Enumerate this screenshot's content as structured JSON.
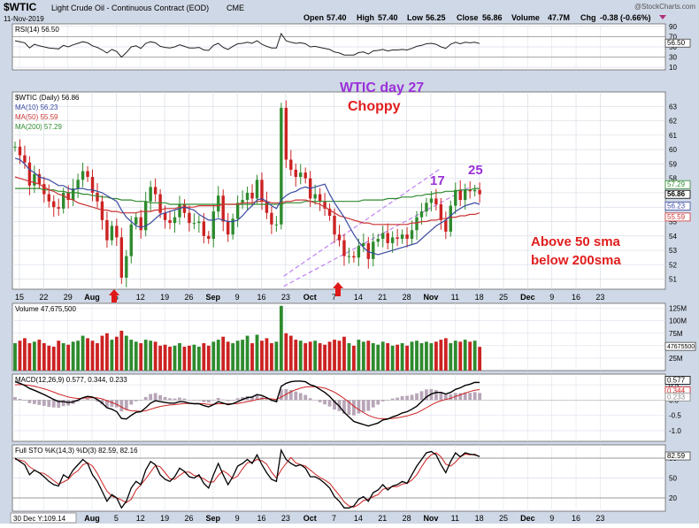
{
  "header": {
    "symbol": "$WTIC",
    "name": "Light Crude Oil - Continuous Contract (EOD)",
    "exchange": "CME",
    "date": "11-Nov-2019",
    "watermark": "@StockCharts.com",
    "open_label": "Open",
    "open": "57.40",
    "high_label": "High",
    "high": "57.40",
    "low_label": "Low",
    "low": "56.25",
    "close_label": "Close",
    "close": "56.86",
    "volume_label": "Volume",
    "volume": "47.7M",
    "chg_label": "Chg",
    "chg": "-0.38 (-0.66%)"
  },
  "footer": {
    "crosshair": "30 Dec Y:109.14"
  },
  "colors": {
    "up": "#2e8b2e",
    "down": "#cc2222",
    "ma10": "#3a4aa0",
    "ma50": "#cc3333",
    "ma200": "#2e8b2e",
    "channel": "#c080f0",
    "annotation_purple": "#9b30d9",
    "annotation_red": "#e11d1d",
    "arrow": "#e01818",
    "panel_bg": "#ffffff",
    "chart_bg": "#cfd8e6"
  },
  "annotations": {
    "title1": "WTIC day 27",
    "title2": "Choppy",
    "count1": "17",
    "count2": "25",
    "note1": "Above 50 sma",
    "note2": "below 200sma"
  },
  "chart_data": [
    {
      "panel": "price",
      "type": "candlestick",
      "legend": [
        "$WTIC (Daily) 56.86",
        "MA(10) 56.23",
        "MA(50) 55.59",
        "MA(200) 57.29"
      ],
      "y_ticks": [
        51,
        52,
        53,
        54,
        55,
        56,
        57,
        58,
        59,
        60,
        61,
        62,
        63
      ],
      "ylim": [
        50.3,
        64.0
      ],
      "x_tick_labels": [
        "15",
        "22",
        "29",
        "Aug",
        "5",
        "12",
        "19",
        "26",
        "Sep",
        "9",
        "16",
        "23",
        "Oct",
        "7",
        "14",
        "21",
        "28",
        "Nov",
        "11",
        "18",
        "25",
        "Dec",
        "9",
        "16",
        "23"
      ],
      "right_labels": [
        "57.29",
        "56.86",
        "56.23",
        "55.59"
      ],
      "closes": [
        60.2,
        59.6,
        59.1,
        57.5,
        58.3,
        57.6,
        56.9,
        56.4,
        56.0,
        55.9,
        57.0,
        56.5,
        57.3,
        57.9,
        58.5,
        58.1,
        57.0,
        56.4,
        55.1,
        53.7,
        54.7,
        53.9,
        51.1,
        52.6,
        54.8,
        55.3,
        54.4,
        56.4,
        57.4,
        56.9,
        55.6,
        55.1,
        54.9,
        55.3,
        56.2,
        55.6,
        54.9,
        54.9,
        55.0,
        54.0,
        53.8,
        55.7,
        56.8,
        55.0,
        54.1,
        55.2,
        56.3,
        56.5,
        57.0,
        56.6,
        57.9,
        56.4,
        55.6,
        54.8,
        54.8,
        62.9,
        59.3,
        58.6,
        58.1,
        58.4,
        58.0,
        56.6,
        56.9,
        56.4,
        55.9,
        55.4,
        54.1,
        53.7,
        52.6,
        52.6,
        52.5,
        53.3,
        53.5,
        52.4,
        53.6,
        53.8,
        54.2,
        53.5,
        53.9,
        53.8,
        54.1,
        53.8,
        54.4,
        55.3,
        55.7,
        56.3,
        56.6,
        56.2,
        55.1,
        54.3,
        56.1,
        57.2,
        56.5,
        57.2,
        57.1,
        57.2,
        56.9
      ],
      "ma10": [
        59.4,
        59.3,
        59.0,
        58.6,
        58.4,
        58.1,
        58.0,
        57.9,
        57.7,
        57.5,
        57.5,
        57.3,
        57.2,
        57.3,
        57.3,
        57.2,
        57.2,
        57.1,
        57.0,
        56.8,
        56.6,
        56.4,
        55.8,
        55.3,
        55.0,
        54.7,
        54.6,
        54.7,
        54.9,
        55.2,
        55.5,
        55.6,
        55.7,
        55.8,
        55.9,
        56.0,
        55.9,
        55.8,
        55.5,
        55.3,
        55.1,
        55.1,
        55.2,
        55.1,
        55.0,
        55.0,
        55.1,
        55.4,
        55.8,
        56.1,
        56.5,
        56.6,
        56.4,
        56.1,
        55.9,
        56.5,
        56.8,
        57.0,
        57.1,
        57.3,
        57.4,
        57.3,
        57.4,
        57.5,
        57.6,
        56.9,
        56.3,
        55.8,
        55.3,
        54.7,
        54.1,
        53.6,
        53.2,
        52.9,
        52.8,
        52.7,
        52.8,
        52.9,
        53.0,
        53.1,
        53.2,
        53.3,
        53.4,
        53.5,
        53.8,
        54.1,
        54.4,
        54.7,
        54.9,
        55.1,
        55.4,
        55.7,
        55.9,
        56.1,
        56.2,
        56.3,
        56.2
      ],
      "ma50": [
        58.1,
        58.0,
        57.9,
        57.8,
        57.7,
        57.6,
        57.4,
        57.2,
        57.1,
        56.9,
        56.8,
        56.6,
        56.5,
        56.3,
        56.2,
        56.1,
        56.0,
        55.9,
        55.8,
        55.8,
        55.7,
        55.7,
        55.6,
        55.6,
        55.6,
        55.6,
        55.7,
        55.7,
        55.7,
        55.8,
        55.8,
        55.9,
        55.9,
        55.9,
        56.0,
        56.0,
        56.0,
        56.0,
        56.1,
        56.1,
        56.1,
        56.1,
        56.1,
        56.2,
        56.2,
        56.2,
        56.2,
        56.3,
        56.3,
        56.3,
        56.4,
        56.4,
        56.4,
        56.3,
        56.3,
        56.3,
        56.4,
        56.4,
        56.5,
        56.5,
        56.5,
        56.4,
        56.3,
        56.2,
        56.0,
        55.8,
        55.6,
        55.4,
        55.3,
        55.2,
        55.1,
        55.0,
        54.9,
        54.9,
        54.8,
        54.8,
        54.8,
        54.8,
        54.8,
        54.8,
        54.8,
        54.8,
        54.9,
        54.9,
        55.0,
        55.0,
        55.1,
        55.1,
        55.2,
        55.2,
        55.3,
        55.3,
        55.4,
        55.4,
        55.5,
        55.5,
        55.6
      ],
      "ma200": [
        57.3,
        57.3,
        57.3,
        57.3,
        57.3,
        57.3,
        57.2,
        57.2,
        57.2,
        57.1,
        57.1,
        57.0,
        57.0,
        57.0,
        56.9,
        56.9,
        56.8,
        56.8,
        56.7,
        56.7,
        56.6,
        56.6,
        56.5,
        56.5,
        56.5,
        56.4,
        56.4,
        56.4,
        56.3,
        56.3,
        56.3,
        56.3,
        56.2,
        56.2,
        56.2,
        56.2,
        56.2,
        56.2,
        56.2,
        56.2,
        56.2,
        56.2,
        56.2,
        56.2,
        56.2,
        56.2,
        56.2,
        56.2,
        56.2,
        56.2,
        56.2,
        56.2,
        56.2,
        56.2,
        56.2,
        56.2,
        56.3,
        56.3,
        56.3,
        56.3,
        56.4,
        56.4,
        56.4,
        56.4,
        56.4,
        56.4,
        56.4,
        56.4,
        56.4,
        56.4,
        56.4,
        56.4,
        56.5,
        56.5,
        56.5,
        56.5,
        56.5,
        56.6,
        56.6,
        56.6,
        56.7,
        56.7,
        56.7,
        56.8,
        56.8,
        56.9,
        56.9,
        57.0,
        57.0,
        57.1,
        57.1,
        57.1,
        57.2,
        57.2,
        57.2,
        57.3,
        57.3
      ],
      "channel_upper": [
        [
          55.5,
          51.2
        ],
        [
          88.0,
          58.7
        ]
      ],
      "channel_lower": [
        [
          55.5,
          50.5
        ],
        [
          94.0,
          57.4
        ]
      ]
    },
    {
      "panel": "rsi",
      "type": "line",
      "legend": [
        "RSI(14) 56.50"
      ],
      "y_ticks": [
        10,
        30,
        50,
        70,
        90
      ],
      "ylim": [
        5,
        95
      ],
      "right_labels": [
        "56.50"
      ],
      "values": [
        62,
        60,
        58,
        48,
        55,
        52,
        50,
        48,
        47,
        46,
        53,
        50,
        54,
        57,
        60,
        58,
        52,
        49,
        44,
        38,
        45,
        41,
        30,
        39,
        50,
        52,
        47,
        57,
        60,
        58,
        51,
        49,
        48,
        50,
        54,
        51,
        48,
        48,
        49,
        44,
        43,
        53,
        57,
        49,
        45,
        51,
        56,
        57,
        59,
        57,
        62,
        55,
        51,
        48,
        48,
        76,
        62,
        59,
        57,
        58,
        56,
        50,
        51,
        49,
        47,
        45,
        40,
        38,
        34,
        34,
        34,
        39,
        40,
        36,
        42,
        43,
        45,
        42,
        44,
        44,
        45,
        44,
        47,
        51,
        53,
        56,
        57,
        55,
        50,
        47,
        55,
        59,
        56,
        59,
        58,
        59,
        56.5
      ]
    },
    {
      "panel": "volume",
      "type": "bar",
      "legend": [
        "Volume 47,675,500"
      ],
      "y_ticks": [
        "25M",
        "50M",
        "75M",
        "100M",
        "125M"
      ],
      "ylim": [
        0,
        135
      ],
      "right_labels": [
        "47675500"
      ],
      "values": [
        55,
        60,
        65,
        55,
        58,
        62,
        55,
        50,
        48,
        60,
        55,
        52,
        58,
        60,
        70,
        65,
        60,
        55,
        70,
        75,
        62,
        68,
        80,
        70,
        62,
        58,
        55,
        62,
        60,
        58,
        50,
        52,
        48,
        50,
        55,
        48,
        50,
        52,
        48,
        55,
        50,
        58,
        62,
        68,
        58,
        55,
        60,
        62,
        70,
        55,
        72,
        60,
        65,
        55,
        58,
        130,
        75,
        70,
        62,
        60,
        55,
        58,
        60,
        55,
        52,
        58,
        62,
        60,
        68,
        55,
        50,
        62,
        58,
        60,
        55,
        52,
        58,
        55,
        50,
        52,
        55,
        50,
        58,
        60,
        55,
        58,
        55,
        58,
        62,
        65,
        55,
        60,
        58,
        62,
        58,
        60,
        47.7
      ]
    },
    {
      "panel": "macd",
      "type": "line",
      "legend": [
        "MACD(12,26,9) 0.577, 0.344, 0.233"
      ],
      "y_ticks": [
        -1.0,
        -0.5,
        0.0,
        0.5
      ],
      "ylim": [
        -1.35,
        0.85
      ],
      "right_labels": [
        "0.577",
        "0.344",
        "0.233"
      ],
      "macd": [
        0.6,
        0.55,
        0.48,
        0.38,
        0.32,
        0.25,
        0.18,
        0.1,
        0.02,
        -0.05,
        -0.05,
        -0.08,
        -0.06,
        0.0,
        0.08,
        0.12,
        0.1,
        0.02,
        -0.1,
        -0.25,
        -0.3,
        -0.38,
        -0.6,
        -0.62,
        -0.5,
        -0.4,
        -0.38,
        -0.25,
        -0.1,
        -0.02,
        -0.05,
        -0.08,
        -0.1,
        -0.1,
        -0.05,
        -0.06,
        -0.1,
        -0.12,
        -0.12,
        -0.18,
        -0.22,
        -0.15,
        -0.05,
        -0.1,
        -0.15,
        -0.12,
        -0.05,
        0.02,
        0.08,
        0.1,
        0.18,
        0.15,
        0.08,
        0.0,
        -0.05,
        0.45,
        0.55,
        0.6,
        0.62,
        0.62,
        0.6,
        0.5,
        0.45,
        0.35,
        0.25,
        0.12,
        -0.05,
        -0.2,
        -0.4,
        -0.55,
        -0.7,
        -0.75,
        -0.8,
        -0.85,
        -0.8,
        -0.75,
        -0.65,
        -0.62,
        -0.55,
        -0.5,
        -0.42,
        -0.38,
        -0.3,
        -0.2,
        -0.05,
        0.1,
        0.2,
        0.25,
        0.25,
        0.2,
        0.25,
        0.35,
        0.4,
        0.48,
        0.52,
        0.58,
        0.577
      ],
      "signal": [
        0.5,
        0.51,
        0.5,
        0.48,
        0.45,
        0.41,
        0.37,
        0.32,
        0.26,
        0.2,
        0.15,
        0.1,
        0.07,
        0.05,
        0.06,
        0.07,
        0.08,
        0.07,
        0.04,
        -0.02,
        -0.08,
        -0.14,
        -0.23,
        -0.31,
        -0.35,
        -0.36,
        -0.37,
        -0.35,
        -0.3,
        -0.25,
        -0.21,
        -0.18,
        -0.16,
        -0.15,
        -0.13,
        -0.11,
        -0.11,
        -0.11,
        -0.11,
        -0.12,
        -0.14,
        -0.14,
        -0.12,
        -0.12,
        -0.12,
        -0.12,
        -0.11,
        -0.08,
        -0.05,
        -0.02,
        0.02,
        0.05,
        0.05,
        0.04,
        0.02,
        0.1,
        0.19,
        0.27,
        0.34,
        0.39,
        0.43,
        0.44,
        0.44,
        0.42,
        0.39,
        0.33,
        0.26,
        0.16,
        0.05,
        -0.07,
        -0.2,
        -0.31,
        -0.41,
        -0.5,
        -0.56,
        -0.6,
        -0.61,
        -0.61,
        -0.6,
        -0.58,
        -0.55,
        -0.52,
        -0.47,
        -0.42,
        -0.34,
        -0.25,
        -0.16,
        -0.08,
        -0.02,
        0.02,
        0.06,
        0.12,
        0.17,
        0.23,
        0.28,
        0.32,
        0.344
      ]
    },
    {
      "panel": "stochastic",
      "type": "line",
      "legend": [
        "Full STO %K(14,3) %D(3) 82.59, 82.16"
      ],
      "y_ticks": [
        20,
        50,
        80
      ],
      "ylim": [
        0,
        100
      ],
      "right_labels": [
        "82.59"
      ],
      "k": [
        80,
        75,
        70,
        55,
        62,
        58,
        52,
        45,
        40,
        38,
        55,
        50,
        62,
        70,
        78,
        72,
        55,
        45,
        30,
        15,
        25,
        20,
        5,
        15,
        35,
        45,
        40,
        62,
        75,
        70,
        55,
        48,
        45,
        52,
        65,
        60,
        52,
        50,
        55,
        42,
        35,
        55,
        72,
        55,
        40,
        52,
        68,
        72,
        78,
        72,
        85,
        70,
        58,
        48,
        45,
        92,
        78,
        72,
        68,
        70,
        65,
        52,
        52,
        48,
        42,
        35,
        22,
        15,
        5,
        5,
        8,
        18,
        22,
        15,
        28,
        32,
        40,
        32,
        38,
        40,
        45,
        42,
        55,
        68,
        78,
        88,
        90,
        85,
        70,
        58,
        75,
        88,
        82,
        88,
        86,
        85,
        82.59
      ],
      "d": [
        78,
        77,
        75,
        67,
        62,
        58,
        57,
        52,
        46,
        41,
        44,
        48,
        56,
        61,
        70,
        73,
        68,
        57,
        43,
        30,
        23,
        20,
        17,
        13,
        18,
        32,
        40,
        49,
        59,
        69,
        67,
        58,
        49,
        48,
        54,
        59,
        59,
        54,
        52,
        49,
        44,
        44,
        54,
        61,
        56,
        49,
        53,
        64,
        73,
        74,
        78,
        76,
        71,
        59,
        50,
        62,
        72,
        81,
        73,
        70,
        68,
        62,
        56,
        51,
        47,
        42,
        33,
        24,
        14,
        8,
        6,
        10,
        16,
        18,
        22,
        25,
        33,
        35,
        37,
        37,
        41,
        42,
        47,
        55,
        67,
        78,
        85,
        88,
        82,
        71,
        68,
        74,
        82,
        86,
        85,
        86,
        82.16
      ]
    }
  ]
}
